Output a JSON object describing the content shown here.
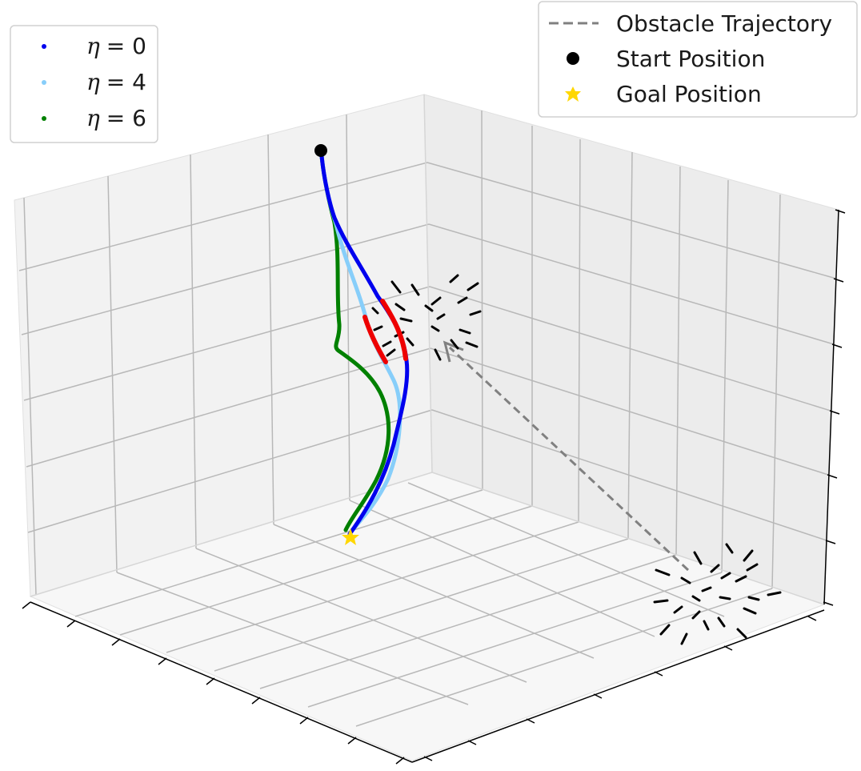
{
  "chart_data": {
    "type": "scatter",
    "projection": "3d",
    "tick_labels_visible": false,
    "grid": true,
    "legends": [
      {
        "placement": "top-left",
        "entries": [
          {
            "label_symbol": "η",
            "label_value": "= 0",
            "color": "#0000ee",
            "marker": "dot"
          },
          {
            "label_symbol": "η",
            "label_value": "= 4",
            "color": "#87cefa",
            "marker": "dot"
          },
          {
            "label_symbol": "η",
            "label_value": "= 6",
            "color": "#008000",
            "marker": "dot"
          }
        ]
      },
      {
        "placement": "top-right",
        "entries": [
          {
            "label": "Obstacle Trajectory",
            "color": "#808080",
            "marker": "dashed-line"
          },
          {
            "label": "Start Position",
            "color": "#000000",
            "marker": "circle"
          },
          {
            "label": "Goal Position",
            "color": "#ffd700",
            "marker": "star"
          }
        ]
      }
    ],
    "colors": {
      "eta0": "#0000ee",
      "eta4": "#87cefa",
      "eta6": "#008000",
      "near_obstacle": "#ee0000",
      "obstacle_arrows": "#000000",
      "obstacle_trajectory": "#808080",
      "start": "#000000",
      "goal": "#ffd700"
    }
  }
}
